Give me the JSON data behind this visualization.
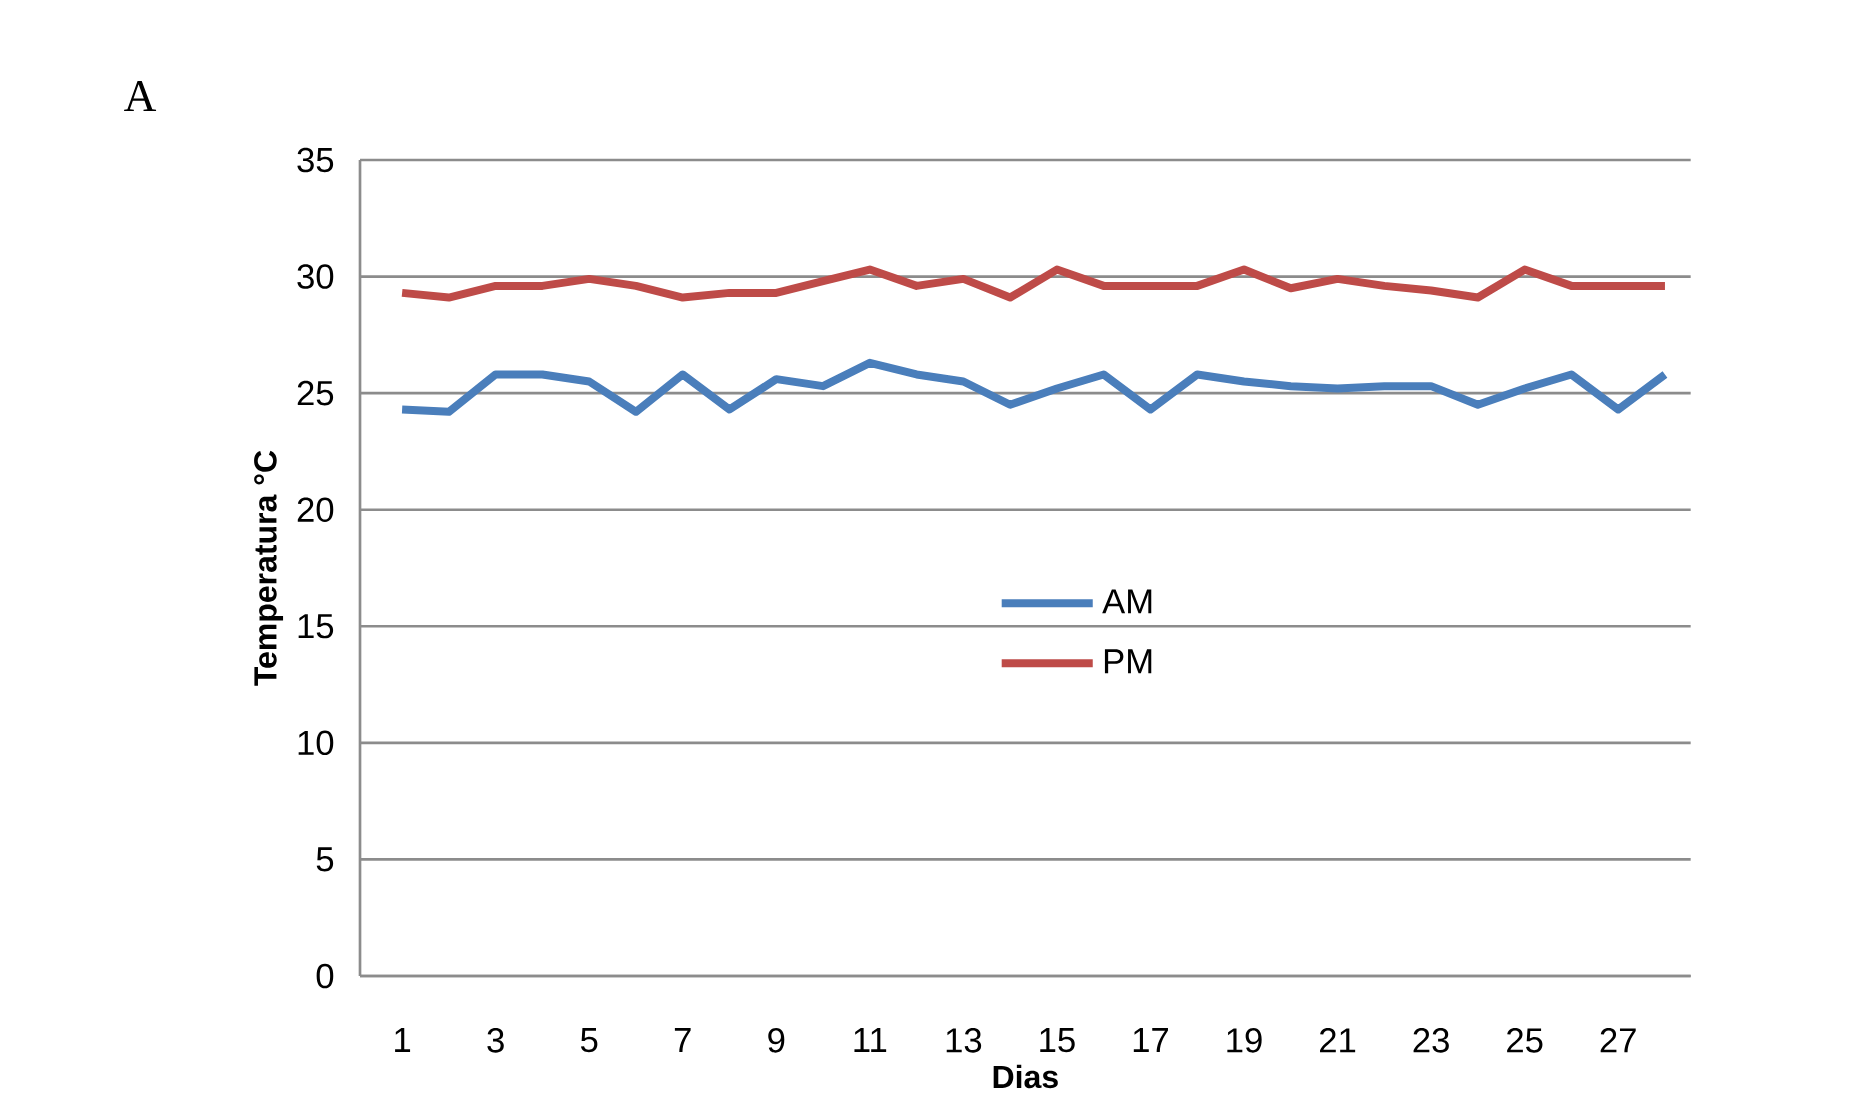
{
  "chart_data": {
    "type": "line",
    "xlabel": "Dias",
    "ylabel": "Temperatura °C",
    "annotations": [
      "A"
    ],
    "categories": [
      "1",
      null,
      "3",
      null,
      "5",
      null,
      "7",
      null,
      "9",
      null,
      "11",
      null,
      "13",
      null,
      "15",
      null,
      "17",
      null,
      "19",
      null,
      "21",
      null,
      "23",
      null,
      "25",
      null,
      "27",
      null
    ],
    "series": [
      {
        "name": "AM",
        "color": "#4a7ebb",
        "values": [
          24.3,
          24.2,
          25.8,
          25.8,
          25.5,
          24.2,
          25.8,
          24.3,
          25.6,
          25.3,
          26.3,
          25.8,
          25.5,
          24.5,
          25.2,
          25.8,
          24.3,
          25.8,
          25.5,
          25.3,
          25.2,
          25.3,
          25.3,
          24.5,
          25.2,
          25.8,
          24.3,
          25.8
        ]
      },
      {
        "name": "PM",
        "color": "#be4b48",
        "values": [
          29.3,
          29.1,
          29.6,
          29.6,
          29.9,
          29.6,
          29.1,
          29.3,
          29.3,
          29.8,
          30.3,
          29.6,
          29.9,
          29.1,
          30.3,
          29.6,
          29.6,
          29.6,
          30.3,
          29.5,
          29.9,
          29.6,
          29.4,
          29.1,
          30.3,
          29.6,
          29.6,
          29.6
        ]
      }
    ],
    "ylim": [
      0,
      35
    ],
    "yticks": [
      0,
      5,
      10,
      15,
      20,
      25,
      30,
      35
    ],
    "grid": "y",
    "legend": "center",
    "marker": "none",
    "line_style": "solid"
  }
}
